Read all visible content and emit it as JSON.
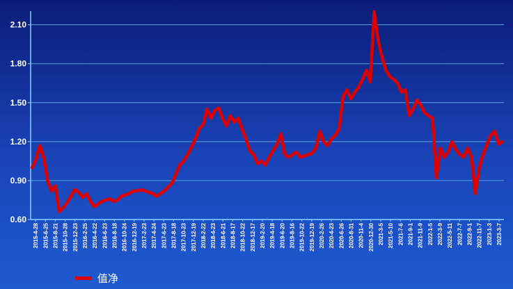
{
  "chart_data": {
    "type": "line",
    "title": "",
    "xlabel": "",
    "ylabel": "",
    "ylim": [
      0.6,
      2.2
    ],
    "yticks": [
      0.6,
      0.9,
      1.2,
      1.5,
      1.8,
      2.1
    ],
    "ytick_labels": [
      "0.60",
      "0.90",
      "1.20",
      "1.50",
      "1.80",
      "2.10"
    ],
    "grid": true,
    "legend": {
      "position": "bottom-left",
      "entries": [
        "值净"
      ]
    },
    "colors": {
      "line": "#dd0000",
      "grid": "#5aa0e0",
      "axis": "#8ad0ff",
      "text": "#ffffff"
    },
    "x_tick_labels": [
      "2015-4-28",
      "2015-6-25",
      "2015-8-21",
      "2015-10-28",
      "2015-12-23",
      "2016-2-25",
      "2016-4-22",
      "2016-6-23",
      "2016-8-18",
      "2016-10-24",
      "2016-12-19",
      "2017-2-23",
      "2017-4-24",
      "2017-6-23",
      "2017-8-18",
      "2017-10-23",
      "2017-12-19",
      "2018-2-22",
      "2018-4-23",
      "2018-6-21",
      "2018-8-17",
      "2018-10-22",
      "2018-12-17",
      "2019-2-20",
      "2019-4-18",
      "2019-6-20",
      "2019-8-16",
      "2019-10-22",
      "2019-12-19",
      "2020-2-26",
      "2020-4-23",
      "2020-6-26",
      "2020-8-31",
      "2020-11-4",
      "2020-12-30",
      "2021-3-5",
      "2021-5-10",
      "2021-7-6",
      "2021-9-1",
      "2021-11-9",
      "2022-1-5",
      "2022-3-9",
      "2022-5-11",
      "2022-7-7",
      "2022-9-1",
      "2022-11-7",
      "2023-1-3",
      "2023-3-7"
    ],
    "series": [
      {
        "name": "值净",
        "color": "#dd0000",
        "values": [
          1.0,
          1.06,
          1.17,
          1.08,
          0.9,
          0.82,
          0.86,
          0.66,
          0.69,
          0.73,
          0.78,
          0.83,
          0.81,
          0.77,
          0.8,
          0.74,
          0.7,
          0.72,
          0.74,
          0.75,
          0.76,
          0.74,
          0.75,
          0.78,
          0.79,
          0.8,
          0.82,
          0.82,
          0.83,
          0.82,
          0.81,
          0.8,
          0.78,
          0.8,
          0.82,
          0.85,
          0.88,
          0.95,
          1.02,
          1.05,
          1.1,
          1.16,
          1.22,
          1.3,
          1.33,
          1.45,
          1.38,
          1.44,
          1.46,
          1.38,
          1.32,
          1.4,
          1.35,
          1.38,
          1.3,
          1.22,
          1.13,
          1.1,
          1.03,
          1.05,
          1.02,
          1.08,
          1.13,
          1.18,
          1.26,
          1.1,
          1.08,
          1.1,
          1.12,
          1.08,
          1.09,
          1.1,
          1.11,
          1.15,
          1.28,
          1.2,
          1.17,
          1.22,
          1.25,
          1.3,
          1.55,
          1.6,
          1.53,
          1.58,
          1.62,
          1.68,
          1.75,
          1.66,
          2.2,
          1.98,
          1.85,
          1.75,
          1.7,
          1.68,
          1.65,
          1.58,
          1.6,
          1.4,
          1.45,
          1.52,
          1.48,
          1.42,
          1.4,
          1.38,
          0.92,
          1.15,
          1.08,
          1.12,
          1.2,
          1.14,
          1.1,
          1.08,
          1.15,
          1.08,
          0.8,
          1.0,
          1.1,
          1.18,
          1.25,
          1.28,
          1.18,
          1.2
        ]
      }
    ]
  }
}
